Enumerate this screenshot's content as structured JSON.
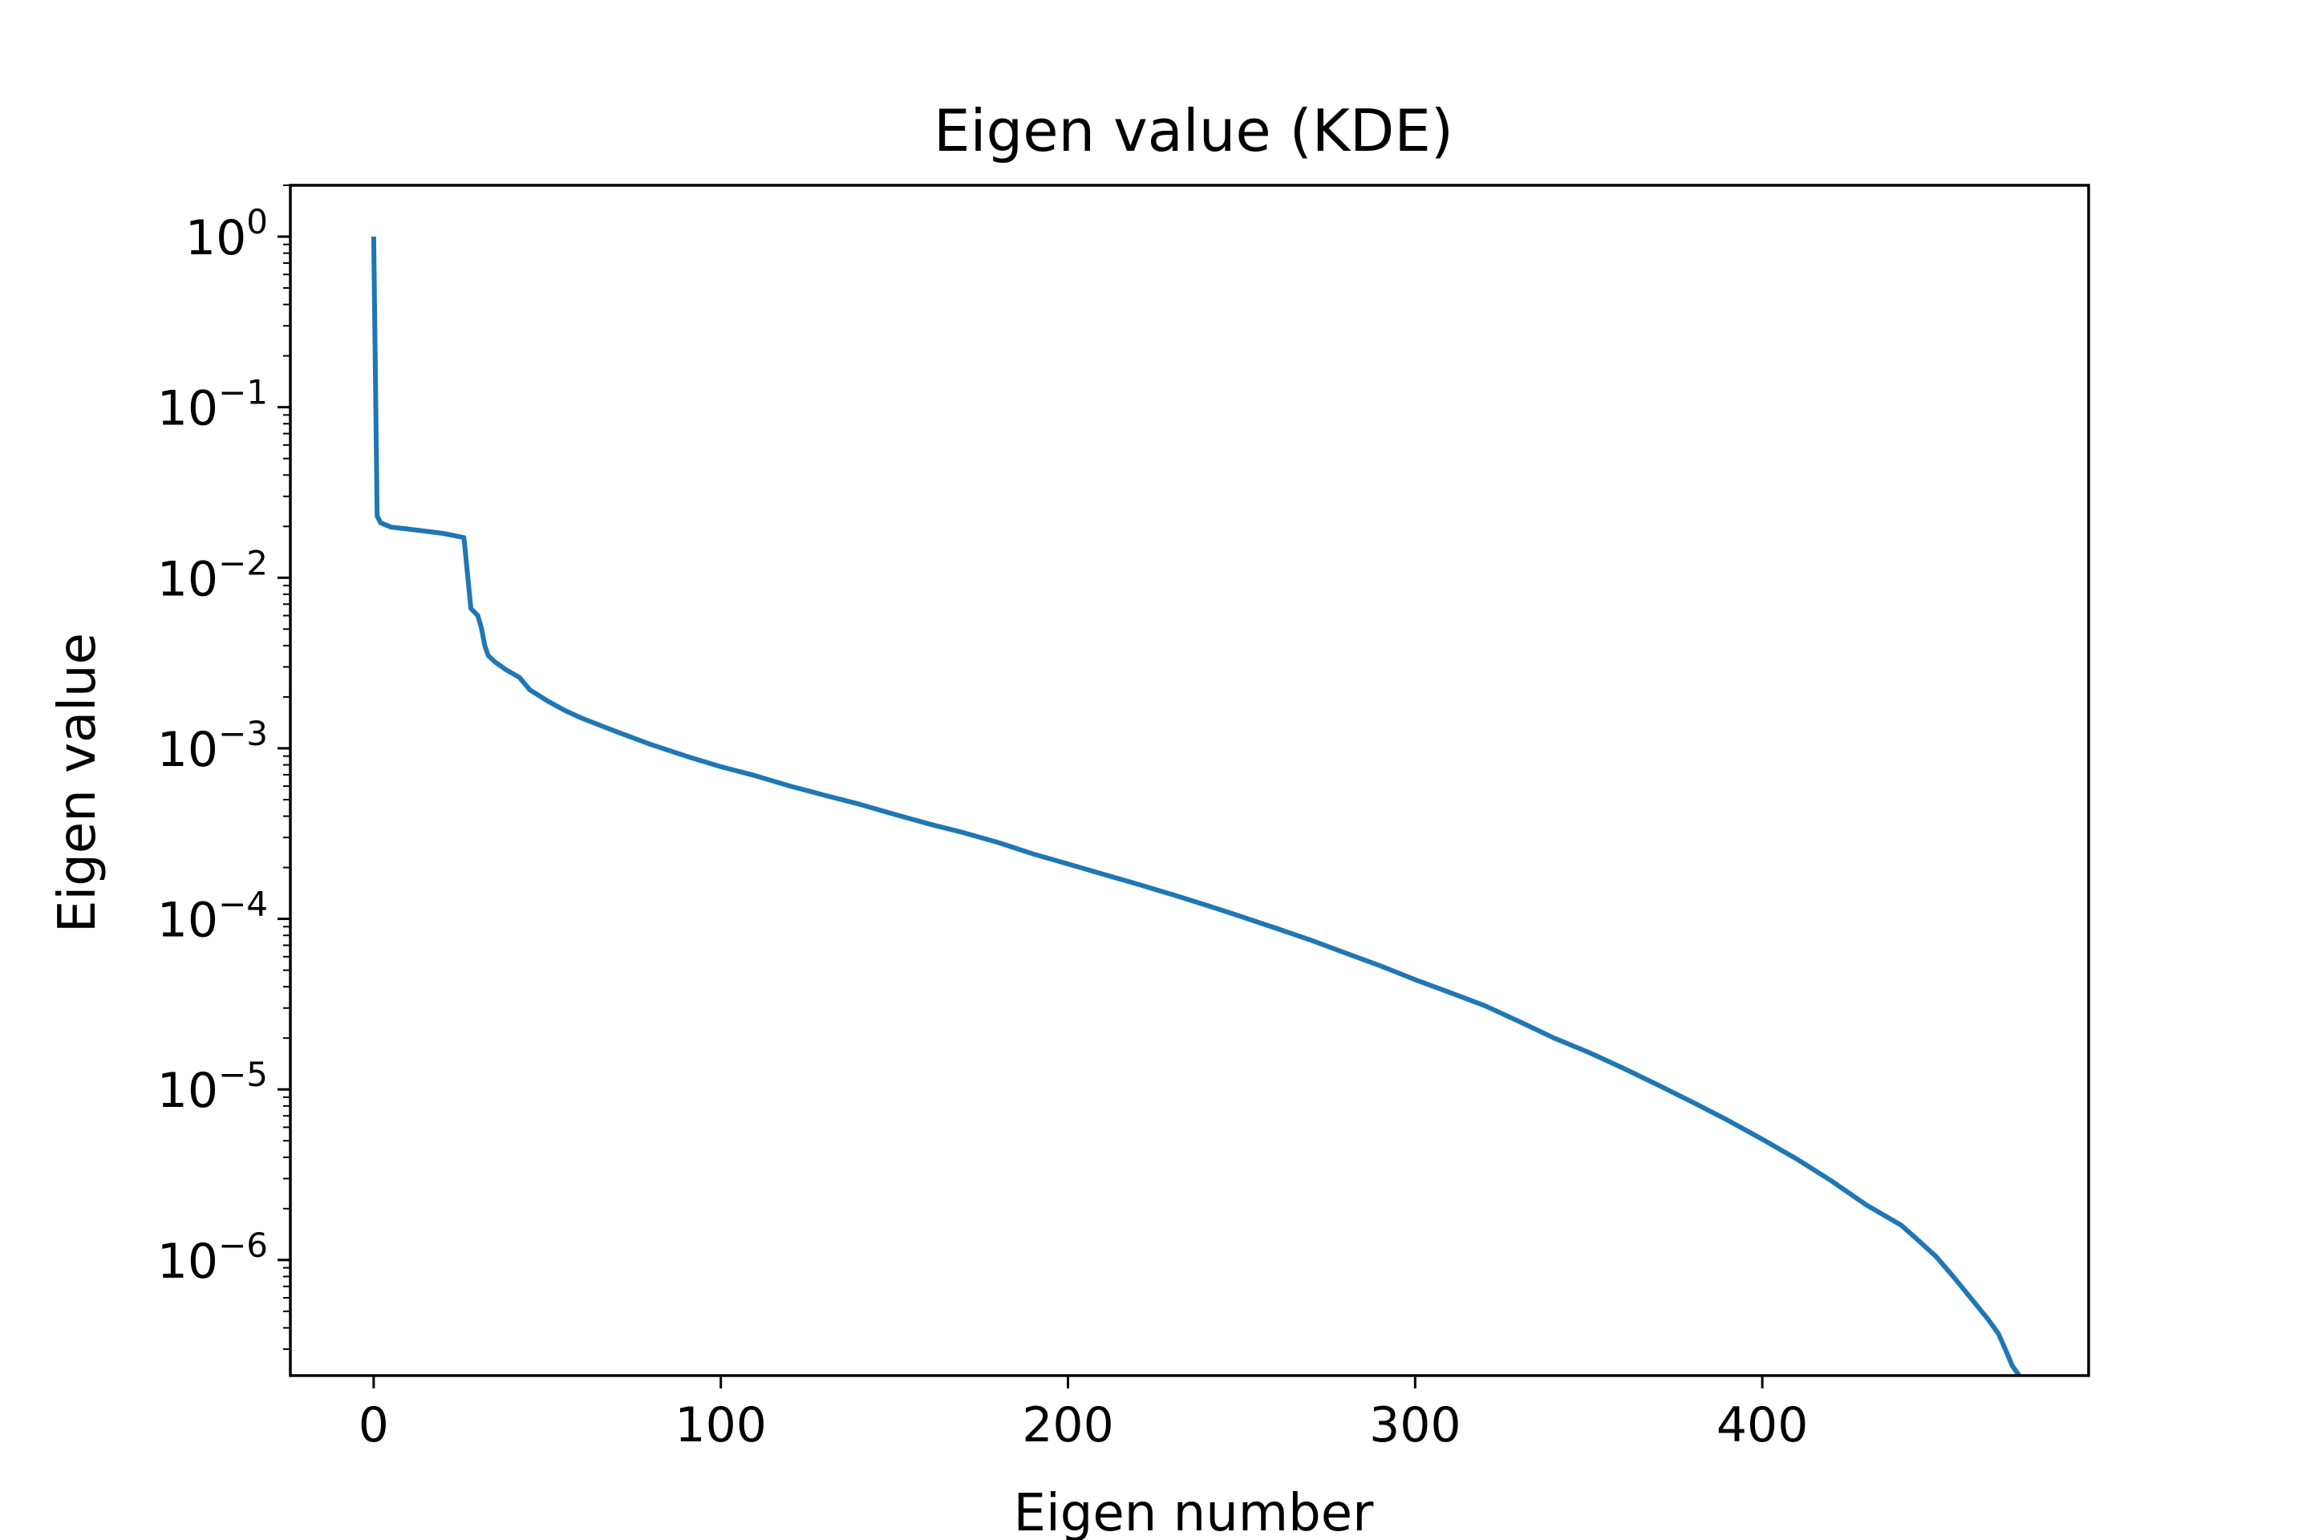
{
  "chart_data": {
    "type": "line",
    "title": "Eigen value (KDE)",
    "xlabel": "Eigen number",
    "ylabel": "Eigen value",
    "xlim": [
      -24,
      494
    ],
    "ylim": [
      2.1e-07,
      2.0
    ],
    "yscale": "log",
    "grid": false,
    "legend": "none",
    "x_ticks": [
      0,
      100,
      200,
      300,
      400
    ],
    "x_tick_labels": [
      "0",
      "100",
      "200",
      "300",
      "400"
    ],
    "y_ticks": [
      1,
      0.1,
      0.01,
      0.001,
      0.0001,
      1e-05,
      1e-06
    ],
    "y_tick_labels": [
      {
        "base": "10",
        "exp": "0"
      },
      {
        "base": "10",
        "exp": "−1"
      },
      {
        "base": "10",
        "exp": "−2"
      },
      {
        "base": "10",
        "exp": "−3"
      },
      {
        "base": "10",
        "exp": "−4"
      },
      {
        "base": "10",
        "exp": "−5"
      },
      {
        "base": "10",
        "exp": "−6"
      }
    ],
    "series": [
      {
        "color": "#1f77b4",
        "x": [
          0,
          1,
          2,
          5,
          10,
          20,
          26,
          27,
          28,
          30,
          31,
          32,
          33,
          35,
          38,
          42,
          45,
          50,
          55,
          60,
          70,
          80,
          90,
          100,
          110,
          120,
          130,
          140,
          150,
          160,
          170,
          180,
          190,
          200,
          210,
          220,
          230,
          240,
          250,
          260,
          270,
          280,
          290,
          300,
          310,
          320,
          330,
          340,
          350,
          360,
          370,
          380,
          390,
          400,
          410,
          420,
          430,
          440,
          445,
          450,
          455,
          460,
          465,
          468,
          470,
          472,
          474
        ],
        "y": [
          1.0,
          0.023,
          0.021,
          0.0198,
          0.0193,
          0.0182,
          0.0172,
          0.0107,
          0.0066,
          0.006,
          0.0051,
          0.004,
          0.0035,
          0.0032,
          0.0029,
          0.0026,
          0.0022,
          0.0019,
          0.00167,
          0.0015,
          0.00125,
          0.00105,
          0.0009,
          0.00078,
          0.00069,
          0.0006,
          0.00053,
          0.00047,
          0.00041,
          0.00036,
          0.00032,
          0.00028,
          0.00024,
          0.00021,
          0.000183,
          0.00016,
          0.000139,
          0.00012,
          0.000103,
          8.8e-05,
          7.5e-05,
          6.3e-05,
          5.3e-05,
          4.4e-05,
          3.7e-05,
          3.1e-05,
          2.5e-05,
          2e-05,
          1.65e-05,
          1.33e-05,
          1.06e-05,
          8.4e-06,
          6.6e-06,
          5.1e-06,
          3.9e-06,
          2.9e-06,
          2.1e-06,
          1.6e-06,
          1.3e-06,
          1.05e-06,
          8e-07,
          6e-07,
          4.5e-07,
          3.7e-07,
          3e-07,
          2.4e-07,
          2.1e-07
        ]
      }
    ]
  }
}
